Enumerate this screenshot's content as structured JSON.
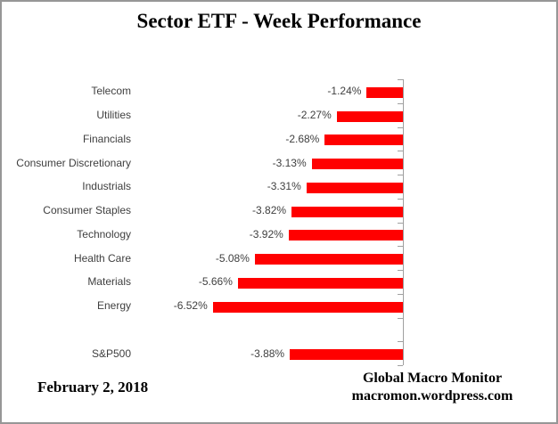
{
  "title": "Sector ETF - Week Performance",
  "footer": {
    "date": "February 2, 2018",
    "source_line1": "Global Macro Monitor",
    "source_line2": "macromon.wordpress.com"
  },
  "colors": {
    "bar": "#ff0000",
    "axis": "#a0a0a0",
    "frame": "#979797",
    "label_text": "#3f3f3f",
    "title_text": "#000000"
  },
  "chart_data": {
    "type": "bar",
    "orientation": "horizontal",
    "unit": "%",
    "title": "Sector ETF - Week Performance",
    "categories": [
      "Telecom",
      "Utilities",
      "Financials",
      "Consumer Discretionary",
      "Industrials",
      "Consumer Staples",
      "Technology",
      "Health Care",
      "Materials",
      "Energy",
      "S&P500"
    ],
    "values": [
      -1.24,
      -2.27,
      -2.68,
      -3.13,
      -3.31,
      -3.82,
      -3.92,
      -5.08,
      -5.66,
      -6.52,
      -3.88
    ],
    "value_labels": [
      "-1.24%",
      "-2.27%",
      "-2.68%",
      "-3.13%",
      "-3.31%",
      "-3.82%",
      "-3.92%",
      "-5.08%",
      "-5.66%",
      "-6.52%",
      "-3.88%"
    ],
    "gap_before_index": 10,
    "xlim": [
      -7,
      0
    ],
    "value_labels_position": "outside-end",
    "grid": false,
    "legend": false
  }
}
